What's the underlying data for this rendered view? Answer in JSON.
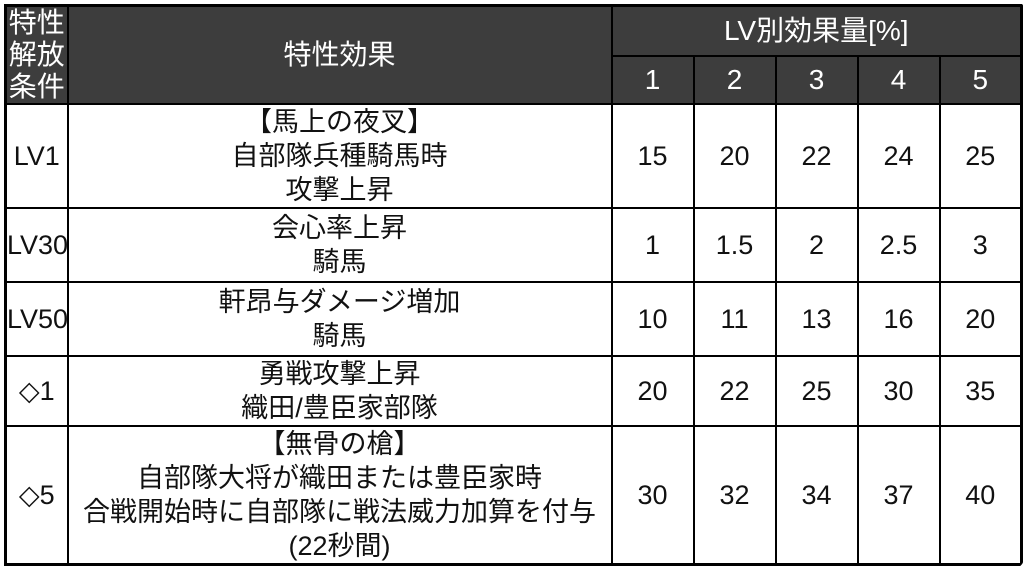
{
  "colors": {
    "header_bg": "#3d3d3d",
    "header_text": "#ffffff",
    "body_bg": "#ffffff",
    "body_text": "#111111",
    "border": "#000000"
  },
  "table": {
    "header": {
      "unlock_label": "特性\n解放\n条件",
      "effect_label": "特性効果",
      "levels_label": "LV別効果量[%]",
      "level_columns": [
        "1",
        "2",
        "3",
        "4",
        "5"
      ]
    },
    "rows": [
      {
        "unlock": "LV1",
        "effect": "【馬上の夜叉】\n自部隊兵種騎馬時\n攻撃上昇",
        "values": [
          "15",
          "20",
          "22",
          "24",
          "25"
        ]
      },
      {
        "unlock": "LV30",
        "effect": "会心率上昇\n騎馬",
        "values": [
          "1",
          "1.5",
          "2",
          "2.5",
          "3"
        ]
      },
      {
        "unlock": "LV50",
        "effect": "軒昂与ダメージ増加\n騎馬",
        "values": [
          "10",
          "11",
          "13",
          "16",
          "20"
        ]
      },
      {
        "unlock": "◇1",
        "effect": "勇戦攻撃上昇\n織田/豊臣家部隊",
        "values": [
          "20",
          "22",
          "25",
          "30",
          "35"
        ]
      },
      {
        "unlock": "◇5",
        "effect": "【無骨の槍】\n自部隊大将が織田または豊臣家時\n合戦開始時に自部隊に戦法威力加算を付与\n(22秒間)",
        "values": [
          "30",
          "32",
          "34",
          "37",
          "40"
        ]
      }
    ]
  }
}
